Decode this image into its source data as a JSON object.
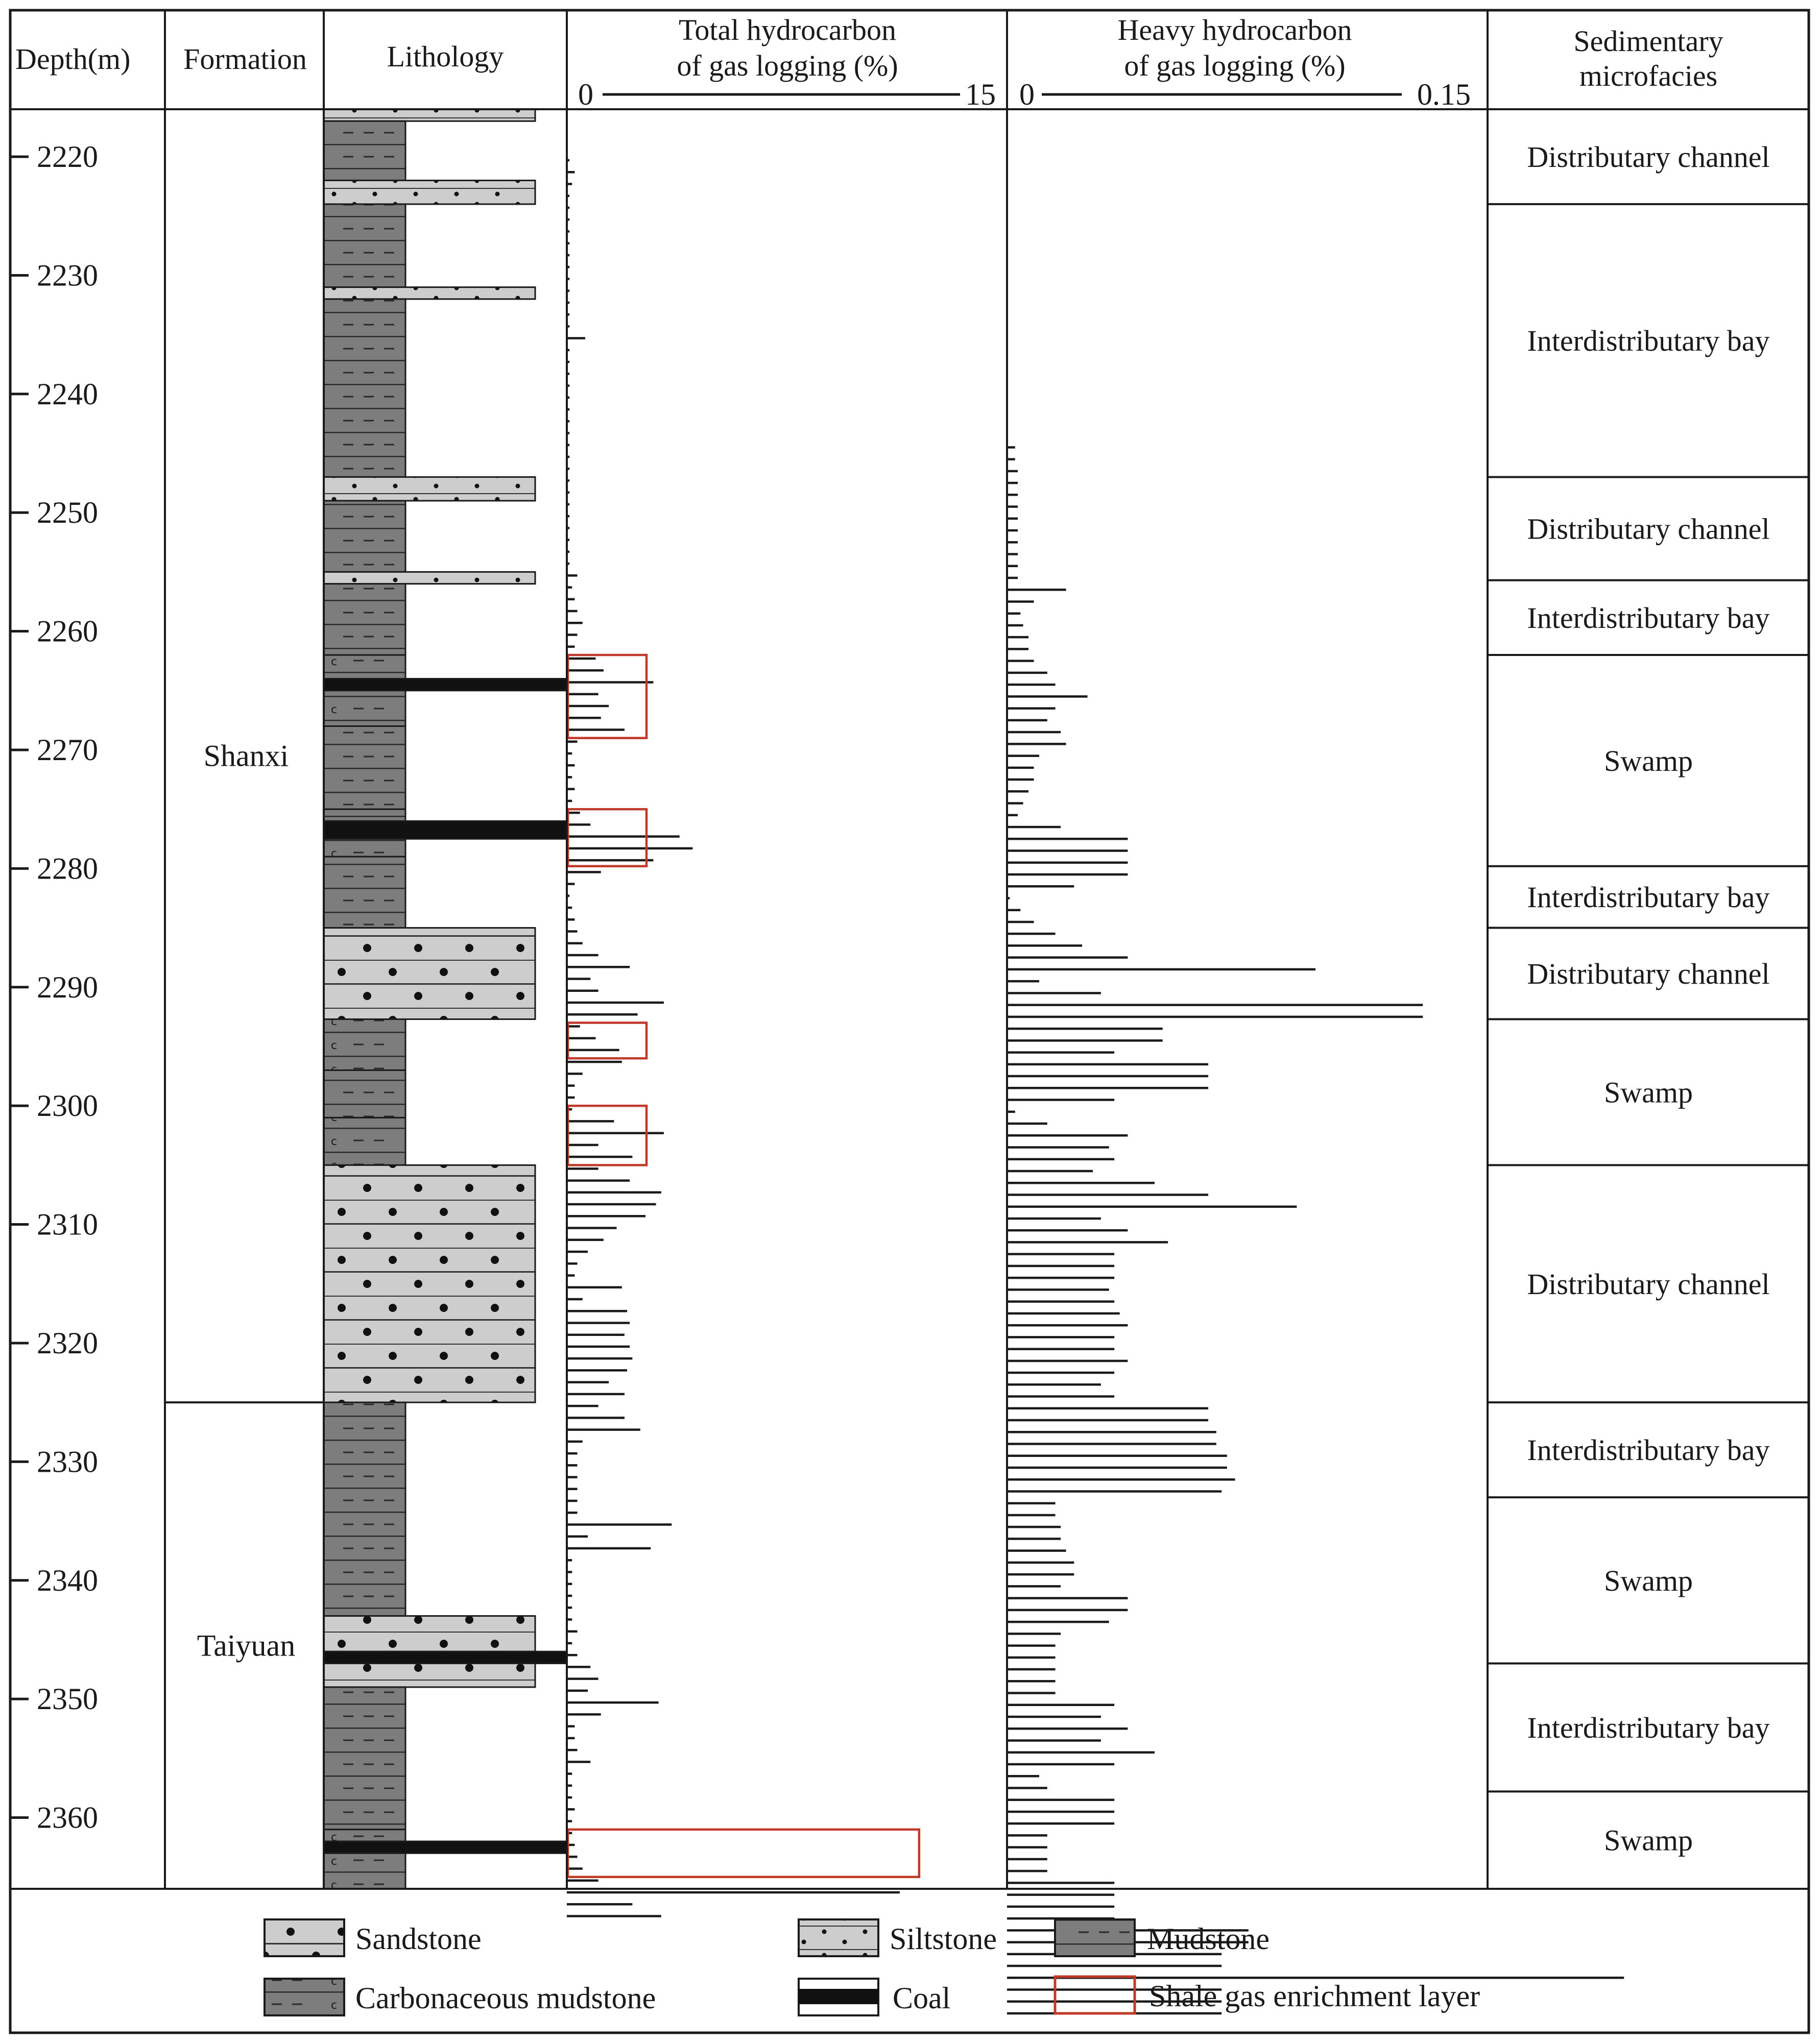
{
  "chart_data": {
    "type": "well-log",
    "headers": {
      "depth": "Depth(m)",
      "formation": "Formation",
      "lithology": "Lithology",
      "thc_line1": "Total hydrocarbon",
      "thc_line2": "of gas logging (%)",
      "heavy_line1": "Heavy hydrocarbon",
      "heavy_line2": "of gas logging (%)",
      "facies_line1": "Sedimentary",
      "facies_line2": "microfacies"
    },
    "depth_axis": {
      "range_m": [
        2216,
        2366
      ],
      "ticks": [
        2220,
        2230,
        2240,
        2250,
        2260,
        2270,
        2280,
        2290,
        2300,
        2310,
        2320,
        2330,
        2340,
        2350,
        2360
      ],
      "tick_labels": [
        "2220",
        "2230",
        "2240",
        "2250",
        "2260",
        "2270",
        "2280",
        "2290",
        "2300",
        "2310",
        "2320",
        "2330",
        "2340",
        "2350",
        "2360"
      ]
    },
    "total_hydrocarbon": {
      "scale_min_label": "0",
      "scale_max_label": "15",
      "range": [
        0,
        15
      ],
      "unit": "%",
      "depth_start_m": 2220.3,
      "depth_step_m": 1,
      "values": [
        0.1,
        0.3,
        0.2,
        0.1,
        0.1,
        0.1,
        0.1,
        0.1,
        0.1,
        0.1,
        0.1,
        0.1,
        0.1,
        0.1,
        0.1,
        0.7,
        0.1,
        0.1,
        0.1,
        0.1,
        0.1,
        0.1,
        0.1,
        0.1,
        0.1,
        0.1,
        0.1,
        0.1,
        0.1,
        0.1,
        0.1,
        0.1,
        0.1,
        0.1,
        0.1,
        0.4,
        0.2,
        0.3,
        0.4,
        0.6,
        0.4,
        0.3,
        1.1,
        1.4,
        3.3,
        1.2,
        1.6,
        1.3,
        2.2,
        0.4,
        0.2,
        0.3,
        0.2,
        0.3,
        0.2,
        0.5,
        0.9,
        4.3,
        4.8,
        3.3,
        1.3,
        0.3,
        0.1,
        0.2,
        0.3,
        0.4,
        0.6,
        1.2,
        2.4,
        0.9,
        1.2,
        3.7,
        2.7,
        0.5,
        1.1,
        2.0,
        2.1,
        0.6,
        0.3,
        0.3,
        0.2,
        1.8,
        3.7,
        1.2,
        2.5,
        1.2,
        2.4,
        3.6,
        3.4,
        3.0,
        1.9,
        1.4,
        0.8,
        0.4,
        0.3,
        2.1,
        0.6,
        2.3,
        2.4,
        2.2,
        2.4,
        2.5,
        2.3,
        1.6,
        2.2,
        1.2,
        2.2,
        2.8,
        0.6,
        0.4,
        0.4,
        0.4,
        0.4,
        0.4,
        0.4,
        4.0,
        0.8,
        3.2,
        0.2,
        0.2,
        0.2,
        0.2,
        0.2,
        0.2,
        0.4,
        0.2,
        0.4,
        0.9,
        1.2,
        0.8,
        3.5,
        1.3,
        0.3,
        0.3,
        0.4,
        0.9,
        0.2,
        0.2,
        0.2,
        0.3,
        0.2,
        0.2,
        0.3,
        0.4,
        0.6,
        1.2,
        12.7,
        2.5,
        3.6
      ]
    },
    "heavy_hydrocarbon": {
      "scale_min_label": "0",
      "scale_max_label": "0.15",
      "range": [
        0,
        0.15
      ],
      "unit": "%",
      "depth_start_m": 2244.5,
      "depth_step_m": 1,
      "values": [
        0.003,
        0.003,
        0.004,
        0.004,
        0.004,
        0.004,
        0.004,
        0.004,
        0.004,
        0.004,
        0.004,
        0.004,
        0.022,
        0.01,
        0.005,
        0.006,
        0.008,
        0.008,
        0.01,
        0.015,
        0.018,
        0.03,
        0.018,
        0.015,
        0.02,
        0.022,
        0.012,
        0.01,
        0.01,
        0.008,
        0.006,
        0.004,
        0.02,
        0.045,
        0.045,
        0.045,
        0.045,
        0.025,
        0.001,
        0.005,
        0.01,
        0.018,
        0.028,
        0.045,
        0.115,
        0.012,
        0.035,
        0.155,
        0.155,
        0.058,
        0.058,
        0.04,
        0.075,
        0.075,
        0.075,
        0.04,
        0.003,
        0.015,
        0.045,
        0.038,
        0.04,
        0.032,
        0.055,
        0.075,
        0.108,
        0.035,
        0.045,
        0.06,
        0.04,
        0.04,
        0.04,
        0.038,
        0.04,
        0.042,
        0.045,
        0.04,
        0.04,
        0.045,
        0.04,
        0.035,
        0.04,
        0.075,
        0.075,
        0.078,
        0.078,
        0.082,
        0.082,
        0.085,
        0.08,
        0.018,
        0.018,
        0.02,
        0.02,
        0.022,
        0.025,
        0.025,
        0.02,
        0.045,
        0.045,
        0.038,
        0.02,
        0.018,
        0.018,
        0.018,
        0.018,
        0.018,
        0.04,
        0.035,
        0.045,
        0.035,
        0.055,
        0.04,
        0.012,
        0.015,
        0.04,
        0.04,
        0.04,
        0.015,
        0.015,
        0.015,
        0.015,
        0.04,
        0.04,
        0.04,
        0.04,
        0.09,
        0.09,
        0.08,
        0.08,
        0.23,
        0.08,
        0.08,
        0.08
      ]
    },
    "formations": [
      {
        "name": "Shanxi",
        "top_m": 2216,
        "bottom_m": 2325
      },
      {
        "name": "Taiyuan",
        "top_m": 2325,
        "bottom_m": 2366
      }
    ],
    "facies": [
      {
        "name": "Distributary channel",
        "top_m": 2216,
        "bottom_m": 2224
      },
      {
        "name": "Interdistributary bay",
        "top_m": 2224,
        "bottom_m": 2247
      },
      {
        "name": "Distributary channel",
        "top_m": 2247,
        "bottom_m": 2255.7
      },
      {
        "name": "Interdistributary bay",
        "top_m": 2255.7,
        "bottom_m": 2262
      },
      {
        "name": "Swamp",
        "top_m": 2262,
        "bottom_m": 2279.8
      },
      {
        "name": "Interdistributary bay",
        "top_m": 2279.8,
        "bottom_m": 2285
      },
      {
        "name": "Distributary channel",
        "top_m": 2285,
        "bottom_m": 2292.7
      },
      {
        "name": "Swamp",
        "top_m": 2292.7,
        "bottom_m": 2305
      },
      {
        "name": "Distributary channel",
        "top_m": 2305,
        "bottom_m": 2325
      },
      {
        "name": "Interdistributary bay",
        "top_m": 2325,
        "bottom_m": 2333
      },
      {
        "name": "Swamp",
        "top_m": 2333,
        "bottom_m": 2347
      },
      {
        "name": "Interdistributary bay",
        "top_m": 2347,
        "bottom_m": 2357.8
      },
      {
        "name": "Swamp",
        "top_m": 2357.8,
        "bottom_m": 2366
      }
    ],
    "lithology": [
      {
        "type": "siltstone",
        "top_m": 2216,
        "bottom_m": 2217
      },
      {
        "type": "mudstone",
        "top_m": 2217,
        "bottom_m": 2222
      },
      {
        "type": "siltstone",
        "top_m": 2222,
        "bottom_m": 2224
      },
      {
        "type": "mudstone",
        "top_m": 2224,
        "bottom_m": 2231
      },
      {
        "type": "siltstone",
        "top_m": 2231,
        "bottom_m": 2232
      },
      {
        "type": "mudstone",
        "top_m": 2232,
        "bottom_m": 2247
      },
      {
        "type": "siltstone",
        "top_m": 2247,
        "bottom_m": 2249
      },
      {
        "type": "mudstone",
        "top_m": 2249,
        "bottom_m": 2255
      },
      {
        "type": "siltstone",
        "top_m": 2255,
        "bottom_m": 2256
      },
      {
        "type": "mudstone",
        "top_m": 2256,
        "bottom_m": 2262
      },
      {
        "type": "carbonaceous",
        "top_m": 2262,
        "bottom_m": 2264
      },
      {
        "type": "coal",
        "top_m": 2264,
        "bottom_m": 2265
      },
      {
        "type": "carbonaceous",
        "top_m": 2265,
        "bottom_m": 2268
      },
      {
        "type": "mudstone",
        "top_m": 2268,
        "bottom_m": 2275
      },
      {
        "type": "carbonaceous",
        "top_m": 2275,
        "bottom_m": 2276
      },
      {
        "type": "coal",
        "top_m": 2276,
        "bottom_m": 2277.5
      },
      {
        "type": "carbonaceous",
        "top_m": 2277.5,
        "bottom_m": 2279
      },
      {
        "type": "mudstone",
        "top_m": 2279,
        "bottom_m": 2285
      },
      {
        "type": "sandstone",
        "top_m": 2285,
        "bottom_m": 2292.7
      },
      {
        "type": "carbonaceous",
        "top_m": 2292.7,
        "bottom_m": 2297
      },
      {
        "type": "mudstone",
        "top_m": 2297,
        "bottom_m": 2301
      },
      {
        "type": "carbonaceous",
        "top_m": 2301,
        "bottom_m": 2305
      },
      {
        "type": "sandstone",
        "top_m": 2305,
        "bottom_m": 2325
      },
      {
        "type": "mudstone",
        "top_m": 2325,
        "bottom_m": 2343
      },
      {
        "type": "sandstone",
        "top_m": 2343,
        "bottom_m": 2346
      },
      {
        "type": "coal",
        "top_m": 2346,
        "bottom_m": 2347
      },
      {
        "type": "sandstone",
        "top_m": 2347,
        "bottom_m": 2349
      },
      {
        "type": "mudstone",
        "top_m": 2349,
        "bottom_m": 2361
      },
      {
        "type": "carbonaceous",
        "top_m": 2361,
        "bottom_m": 2362
      },
      {
        "type": "coal",
        "top_m": 2362,
        "bottom_m": 2363
      },
      {
        "type": "carbonaceous",
        "top_m": 2363,
        "bottom_m": 2366
      }
    ],
    "enrichment_layers": [
      {
        "top_m": 2262,
        "bottom_m": 2269,
        "max_value_pct": 3.0
      },
      {
        "top_m": 2275,
        "bottom_m": 2279.8,
        "max_value_pct": 3.0
      },
      {
        "top_m": 2293,
        "bottom_m": 2296,
        "max_value_pct": 3.0
      },
      {
        "top_m": 2300,
        "bottom_m": 2305,
        "max_value_pct": 3.0
      },
      {
        "top_m": 2361,
        "bottom_m": 2365,
        "max_value_pct": 13.4
      }
    ],
    "legend": [
      {
        "key": "sandstone",
        "label": "Sandstone"
      },
      {
        "key": "siltstone",
        "label": "Siltstone"
      },
      {
        "key": "mudstone",
        "label": "Mudstone"
      },
      {
        "key": "carbonaceous",
        "label": "Carbonaceous mudstone"
      },
      {
        "key": "coal",
        "label": "Coal"
      },
      {
        "key": "enrichment",
        "label": "Shale gas enrichment layer"
      }
    ]
  }
}
